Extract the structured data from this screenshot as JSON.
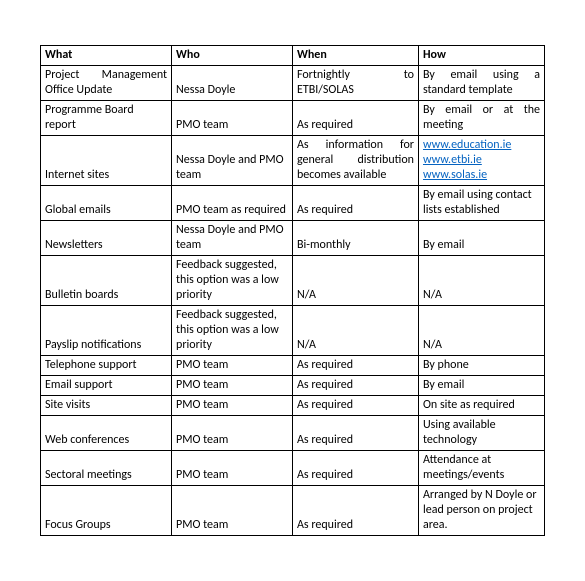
{
  "table": {
    "columns": [
      "What",
      "Who",
      "When",
      "How"
    ],
    "rows": [
      {
        "what": "Project Management Office Update",
        "what_justify": true,
        "who": "Nessa Doyle",
        "when": "Fortnightly to ETBI/SOLAS",
        "when_justify": true,
        "how": "By email using a standard template",
        "how_justify": true
      },
      {
        "what": "Programme Board report",
        "who": "PMO team",
        "when": "As required",
        "how": "By email or at the meeting",
        "how_justify": true
      },
      {
        "what": "Internet sites",
        "who": "Nessa Doyle and PMO team",
        "when": "As information for general distribution becomes available",
        "when_justify": true,
        "how_links": [
          {
            "text": "www.education.ie"
          },
          {
            "text": "www.etbi.ie"
          },
          {
            "text": "www.solas.ie"
          }
        ]
      },
      {
        "what": "Global emails",
        "who": "PMO team as required",
        "when": "As required",
        "how": "By email using contact lists established"
      },
      {
        "what": "Newsletters",
        "who": "Nessa Doyle and PMO team",
        "when": "Bi-monthly",
        "how": "By email"
      },
      {
        "what": "Bulletin boards",
        "who": "Feedback suggested, this option was a low priority",
        "when": "N/A",
        "how": "N/A"
      },
      {
        "what": "Payslip notifications",
        "who": "Feedback suggested, this option was a low priority",
        "when": "N/A",
        "how": "N/A"
      },
      {
        "what": "Telephone support",
        "who": "PMO team",
        "when": "As required",
        "how": "By phone"
      },
      {
        "what": "Email support",
        "who": "PMO team",
        "when": "As required",
        "how": "By email"
      },
      {
        "what": "Site visits",
        "who": "PMO team",
        "when": "As required",
        "how": "On site as required"
      },
      {
        "what": "Web conferences",
        "who": "PMO team",
        "when": "As required",
        "how": "Using available technology"
      },
      {
        "what": "Sectoral meetings",
        "who": "PMO team",
        "when": "As required",
        "how": "Attendance at meetings/events"
      },
      {
        "what": "Focus Groups",
        "who": "PMO team",
        "when": "As required",
        "how": "Arranged by N Doyle or lead person on project area."
      }
    ]
  }
}
